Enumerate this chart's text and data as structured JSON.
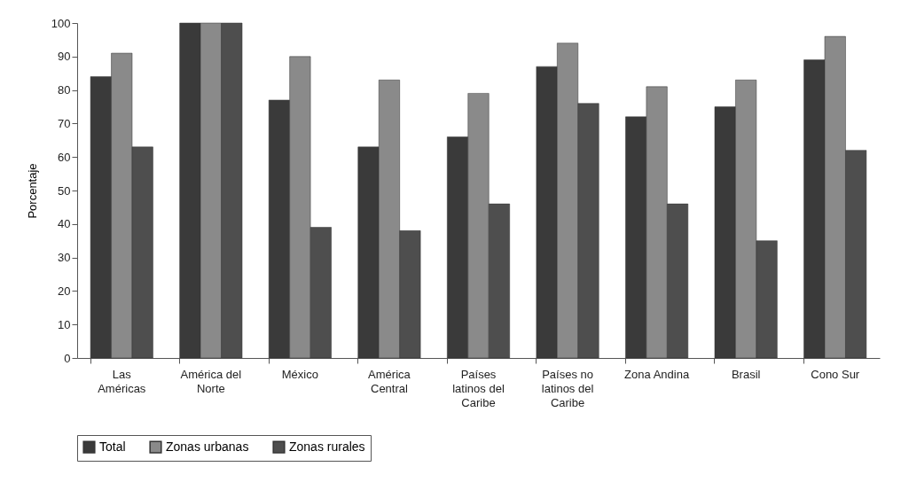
{
  "chart_data": {
    "type": "bar",
    "ylabel": "Porcentaje",
    "categories": [
      "Las Américas",
      "América del Norte",
      "México",
      "América Central",
      "Países latinos del Caribe",
      "Países no latinos del Caribe",
      "Zona Andina",
      "Brasil",
      "Cono Sur"
    ],
    "series": [
      {
        "name": "Total",
        "color": "#3a3a3a",
        "values": [
          84,
          100,
          77,
          63,
          66,
          87,
          72,
          75,
          89
        ]
      },
      {
        "name": "Zonas urbanas",
        "color": "#8a8a8a",
        "values": [
          91,
          100,
          90,
          83,
          79,
          94,
          81,
          83,
          96
        ]
      },
      {
        "name": "Zonas rurales",
        "color": "#4e4e4e",
        "values": [
          63,
          100,
          39,
          38,
          46,
          76,
          46,
          35,
          62
        ]
      }
    ],
    "ylim": [
      0,
      100
    ],
    "yticks": [
      0,
      10,
      20,
      30,
      40,
      50,
      60,
      70,
      80,
      90,
      100
    ],
    "grid": false,
    "legend": "bottom"
  }
}
